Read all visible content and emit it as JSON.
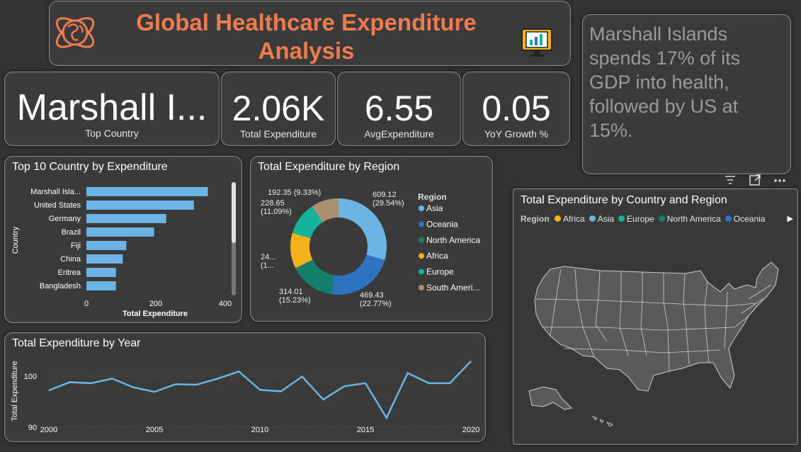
{
  "header": {
    "title_line1": "Global Healthcare Expenditure",
    "title_line2": "Analysis"
  },
  "kpis": [
    {
      "value": "Marshall I...",
      "label": "Top Country"
    },
    {
      "value": "2.06K",
      "label": "Total Expenditure"
    },
    {
      "value": "6.55",
      "label": "AvgExpenditure"
    },
    {
      "value": "0.05",
      "label": "YoY Growth %"
    }
  ],
  "insight": {
    "text": "Marshall Islands spends 17% of its GDP into health, followed by US at 15%."
  },
  "toolbar": {
    "filter": "filter-icon",
    "focus": "focus-mode-icon",
    "more": "more-options-icon"
  },
  "chart_data": [
    {
      "type": "bar",
      "title": "Top 10 Country by Expenditure",
      "categories": [
        "Marshall Isla...",
        "United States",
        "Germany",
        "Brazil",
        "Fiji",
        "China",
        "Eritrea",
        "Bangladesh"
      ],
      "values": [
        350,
        310,
        230,
        195,
        115,
        105,
        85,
        85
      ],
      "xlabel": "Total Expenditure",
      "ylabel": "Country",
      "xlim": [
        0,
        400
      ],
      "xticks": [
        "0",
        "200",
        "400"
      ],
      "color": "#6CB4E4"
    },
    {
      "type": "pie",
      "title": "Total Expenditure by Region",
      "legend_title": "Region",
      "slices": [
        {
          "name": "Asia",
          "value": 609.12,
          "label": "609.12",
          "pct": "(29.54%)",
          "color": "#6CB4E4"
        },
        {
          "name": "Oceania",
          "value": 469.43,
          "label": "469.43",
          "pct": "(22.77%)",
          "color": "#2E72C2"
        },
        {
          "name": "North America",
          "value": 314.01,
          "label": "314.01",
          "pct": "(15.23%)",
          "color": "#13806B"
        },
        {
          "name": "Africa",
          "value": 248.0,
          "label": "24...",
          "pct": "(1...",
          "color": "#F6B21A"
        },
        {
          "name": "Europe",
          "value": 228.65,
          "label": "228.65",
          "pct": "(11.09%)",
          "color": "#13B49B"
        },
        {
          "name": "South America",
          "value": 192.35,
          "label": "192.35",
          "pct": "(9.33%)",
          "color": "#AA9071"
        }
      ],
      "legend_labels": [
        "Asia",
        "Oceania",
        "North America",
        "Africa",
        "Europe",
        "South Ameri..."
      ]
    },
    {
      "type": "line",
      "title": "Total Expenditure by Year",
      "ylabel": "Total Expenditure",
      "x": [
        2000,
        2001,
        2002,
        2003,
        2004,
        2005,
        2006,
        2007,
        2008,
        2009,
        2010,
        2011,
        2012,
        2013,
        2014,
        2015,
        2016,
        2017,
        2018,
        2019,
        2020
      ],
      "values": [
        97.2,
        98.8,
        98.6,
        99.5,
        97.8,
        96.9,
        98.4,
        98.3,
        99.5,
        100.9,
        97.3,
        97.0,
        99.9,
        95.4,
        98.0,
        98.6,
        91.8,
        100.6,
        98.6,
        98.6,
        102.9
      ],
      "xticks": [
        2000,
        2005,
        2010,
        2015,
        2020
      ],
      "yticks": [
        90,
        100
      ],
      "ylim": [
        89,
        104
      ],
      "color": "#6CB4E4"
    }
  ],
  "map": {
    "title": "Total Expenditure by Country and Region",
    "legend_title": "Region",
    "legend": [
      {
        "name": "Africa",
        "color": "#F6B21A"
      },
      {
        "name": "Asia",
        "color": "#6CB4E4"
      },
      {
        "name": "Europe",
        "color": "#13B49B"
      },
      {
        "name": "North America",
        "color": "#13806B"
      },
      {
        "name": "Oceania",
        "color": "#2E72C2"
      }
    ]
  }
}
